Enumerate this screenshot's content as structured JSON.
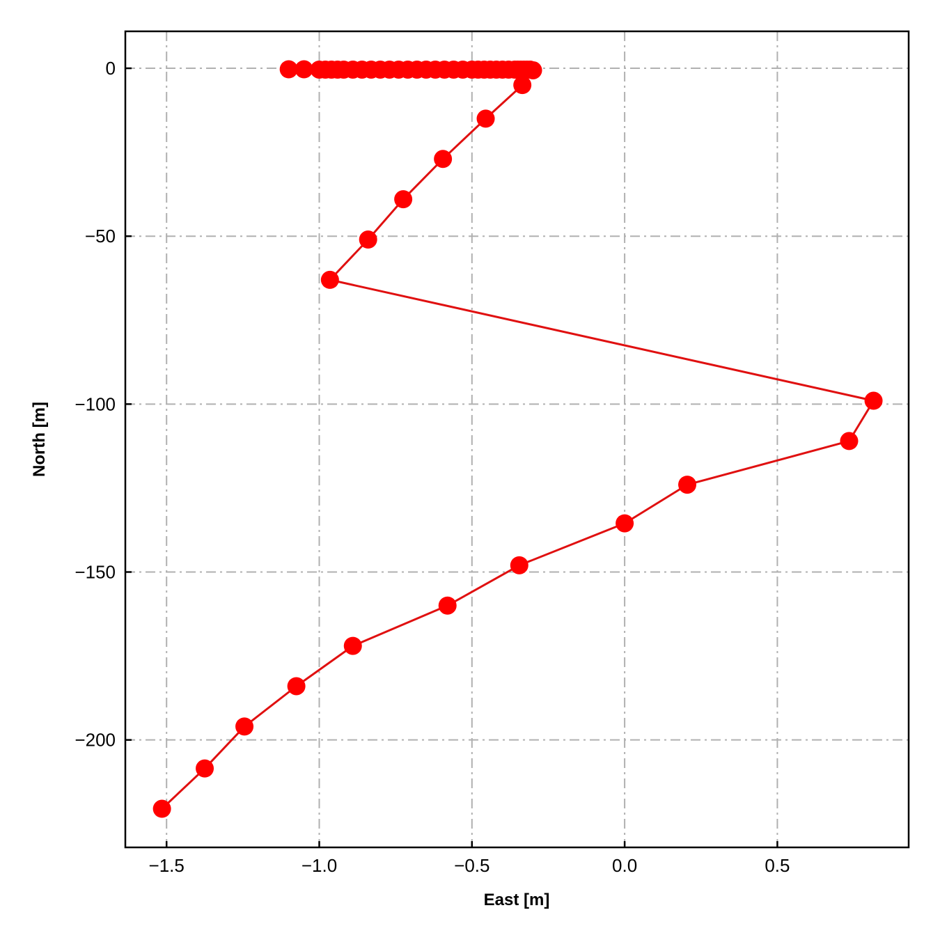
{
  "chart_data": {
    "type": "line",
    "title": "",
    "xlabel": "East [m]",
    "ylabel": "North [m]",
    "xlim": [
      -1.635,
      0.93
    ],
    "ylim": [
      -232,
      11
    ],
    "xticks": [
      -1.5,
      -1.0,
      -0.5,
      0.0,
      0.5
    ],
    "xtick_labels": [
      "−1.5",
      "−1.0",
      "−0.5",
      "0.0",
      "0.5"
    ],
    "yticks": [
      0,
      -50,
      -100,
      -150,
      -200
    ],
    "ytick_labels": [
      "0",
      "−50",
      "−100",
      "−150",
      "−200"
    ],
    "grid": true,
    "legend": "none",
    "series": [
      {
        "color": "#ff0000",
        "line_color": "#e01010",
        "marker": "circle",
        "x": [
          -1.1,
          -1.05,
          -1.0,
          -0.98,
          -0.96,
          -0.94,
          -0.92,
          -0.89,
          -0.86,
          -0.83,
          -0.8,
          -0.77,
          -0.74,
          -0.71,
          -0.68,
          -0.65,
          -0.62,
          -0.59,
          -0.56,
          -0.53,
          -0.5,
          -0.48,
          -0.46,
          -0.44,
          -0.42,
          -0.4,
          -0.38,
          -0.36,
          -0.35,
          -0.34,
          -0.33,
          -0.32,
          -0.31,
          -0.3,
          -0.335,
          -0.455,
          -0.595,
          -0.725,
          -0.84,
          -0.965,
          0.815,
          0.735,
          0.205,
          0.0,
          -0.345,
          -0.58,
          -0.89,
          -1.075,
          -1.245,
          -1.375,
          -1.515
        ],
        "y": [
          -0.3,
          -0.3,
          -0.4,
          -0.4,
          -0.4,
          -0.4,
          -0.4,
          -0.4,
          -0.4,
          -0.4,
          -0.4,
          -0.4,
          -0.4,
          -0.4,
          -0.4,
          -0.4,
          -0.4,
          -0.4,
          -0.4,
          -0.4,
          -0.4,
          -0.4,
          -0.4,
          -0.4,
          -0.4,
          -0.4,
          -0.4,
          -0.4,
          -0.4,
          -0.4,
          -0.4,
          -0.4,
          -0.4,
          -0.6,
          -5,
          -15,
          -27,
          -39,
          -51,
          -63,
          -99,
          -111,
          -124,
          -135.5,
          -148,
          -160,
          -172,
          -184,
          -196,
          -208.5,
          -220.5
        ]
      }
    ]
  }
}
